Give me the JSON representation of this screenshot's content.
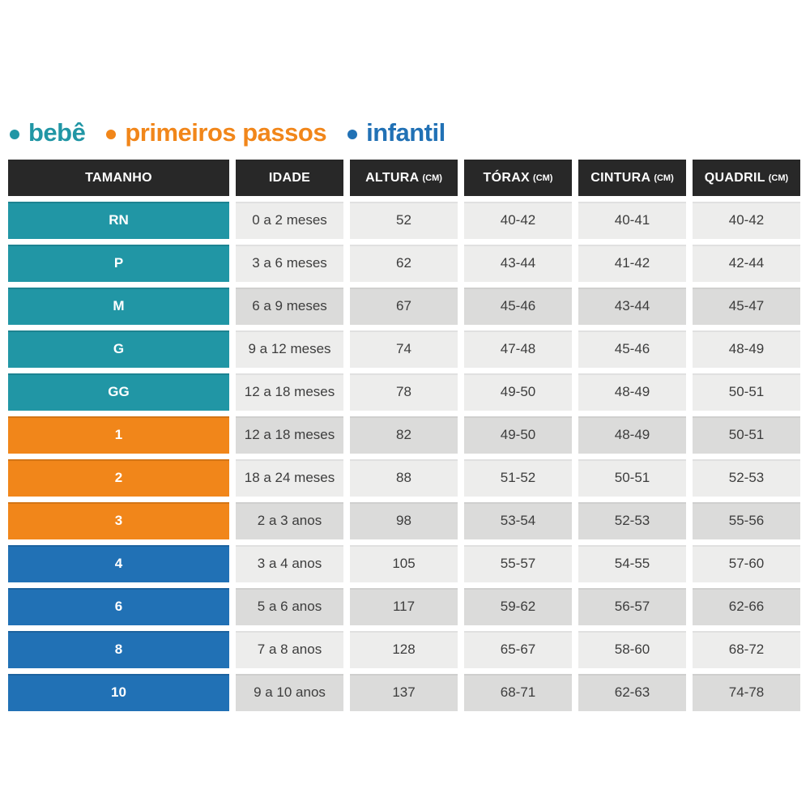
{
  "chart_data": {
    "type": "table",
    "legend": [
      {
        "label": "bebê",
        "color": "#2196A5",
        "applies_to": [
          "RN",
          "P",
          "M",
          "G",
          "GG"
        ]
      },
      {
        "label": "primeiros passos",
        "color": "#F1861A",
        "applies_to": [
          "1",
          "2",
          "3"
        ]
      },
      {
        "label": "infantil",
        "color": "#2171B5",
        "applies_to": [
          "4",
          "6",
          "8",
          "10"
        ]
      }
    ],
    "columns": [
      {
        "label": "TAMANHO",
        "unit": ""
      },
      {
        "label": "IDADE",
        "unit": ""
      },
      {
        "label": "ALTURA",
        "unit": "(CM)"
      },
      {
        "label": "TÓRAX",
        "unit": "(CM)"
      },
      {
        "label": "CINTURA",
        "unit": "(CM)"
      },
      {
        "label": "QUADRIL",
        "unit": "(CM)"
      }
    ],
    "rows": [
      {
        "tamanho": "RN",
        "group": "bebe",
        "shade": "light",
        "idade": "0 a 2 meses",
        "altura": "52",
        "torax": "40-42",
        "cintura": "40-41",
        "quadril": "40-42"
      },
      {
        "tamanho": "P",
        "group": "bebe",
        "shade": "light",
        "idade": "3 a 6 meses",
        "altura": "62",
        "torax": "43-44",
        "cintura": "41-42",
        "quadril": "42-44"
      },
      {
        "tamanho": "M",
        "group": "bebe",
        "shade": "dark",
        "idade": "6 a 9 meses",
        "altura": "67",
        "torax": "45-46",
        "cintura": "43-44",
        "quadril": "45-47"
      },
      {
        "tamanho": "G",
        "group": "bebe",
        "shade": "light",
        "idade": "9 a 12 meses",
        "altura": "74",
        "torax": "47-48",
        "cintura": "45-46",
        "quadril": "48-49"
      },
      {
        "tamanho": "GG",
        "group": "bebe",
        "shade": "light",
        "idade": "12 a 18 meses",
        "altura": "78",
        "torax": "49-50",
        "cintura": "48-49",
        "quadril": "50-51"
      },
      {
        "tamanho": "1",
        "group": "pp",
        "shade": "dark",
        "idade": "12 a 18 meses",
        "altura": "82",
        "torax": "49-50",
        "cintura": "48-49",
        "quadril": "50-51"
      },
      {
        "tamanho": "2",
        "group": "pp",
        "shade": "light",
        "idade": "18 a 24 meses",
        "altura": "88",
        "torax": "51-52",
        "cintura": "50-51",
        "quadril": "52-53"
      },
      {
        "tamanho": "3",
        "group": "pp",
        "shade": "dark",
        "idade": "2 a 3 anos",
        "altura": "98",
        "torax": "53-54",
        "cintura": "52-53",
        "quadril": "55-56"
      },
      {
        "tamanho": "4",
        "group": "inf",
        "shade": "light",
        "idade": "3 a 4 anos",
        "altura": "105",
        "torax": "55-57",
        "cintura": "54-55",
        "quadril": "57-60"
      },
      {
        "tamanho": "6",
        "group": "inf",
        "shade": "dark",
        "idade": "5 a 6 anos",
        "altura": "117",
        "torax": "59-62",
        "cintura": "56-57",
        "quadril": "62-66"
      },
      {
        "tamanho": "8",
        "group": "inf",
        "shade": "light",
        "idade": "7 a 8 anos",
        "altura": "128",
        "torax": "65-67",
        "cintura": "58-60",
        "quadril": "68-72"
      },
      {
        "tamanho": "10",
        "group": "inf",
        "shade": "dark",
        "idade": "9 a 10 anos",
        "altura": "137",
        "torax": "68-71",
        "cintura": "62-63",
        "quadril": "74-78"
      }
    ]
  }
}
